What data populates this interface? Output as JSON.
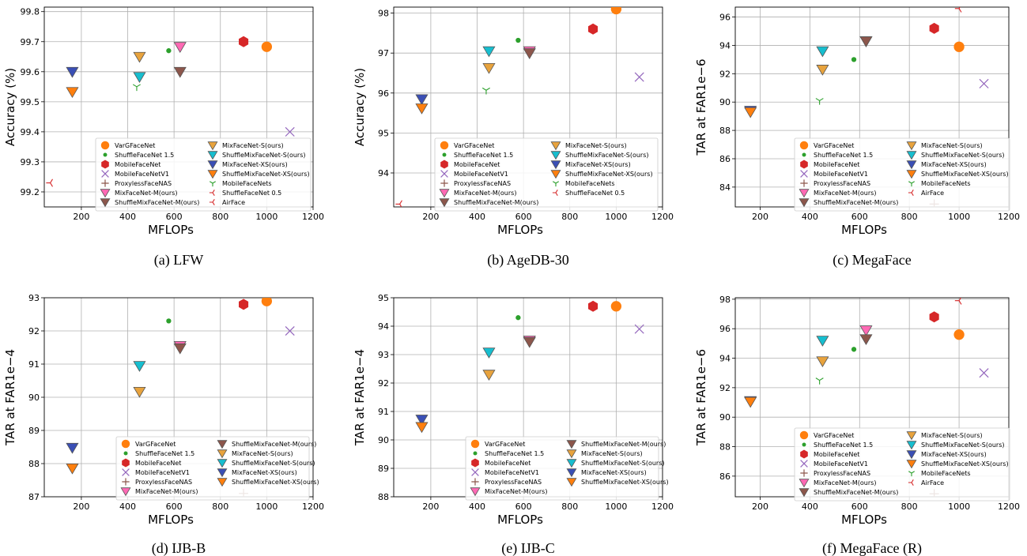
{
  "legend_names": {
    "VarGFaceNet": "VarGFaceNet",
    "ShuffleFaceNet15": "ShuffleFaceNet 1.5",
    "MobileFaceNet": "MobileFaceNet",
    "MobileFaceNetV1": "MobileFaceNetV1",
    "ProxylessFaceNAS": "ProxylessFaceNAS",
    "MixM": "MixFaceNet-M(ours)",
    "ShufMixM": "ShuffleMixFaceNet-M(ours)",
    "MixS": "MixFaceNet-S(ours)",
    "ShufMixS": "ShuffleMixFaceNet-S(ours)",
    "MixXS": "MixFaceNet-XS(ours)",
    "ShufMixXS": "ShuffleMixFaceNet-XS(ours)",
    "MobileFaceNets": "MobileFaceNets",
    "ShuffleFaceNet05": "ShuffleFaceNet 0.5",
    "AirFace": "AirFace"
  },
  "styles": {
    "VarGFaceNet": {
      "marker": "circle",
      "color": "#ff7f0e"
    },
    "ShuffleFaceNet15": {
      "marker": "dot",
      "color": "#2ca02c"
    },
    "MobileFaceNet": {
      "marker": "hexagon",
      "color": "#d62728"
    },
    "MobileFaceNetV1": {
      "marker": "x",
      "color": "#9467bd"
    },
    "ProxylessFaceNAS": {
      "marker": "plus",
      "color": "#8c564b"
    },
    "MixM": {
      "marker": "tri",
      "color": "#ff69b4"
    },
    "ShufMixM": {
      "marker": "tri",
      "color": "#8c564b"
    },
    "MixS": {
      "marker": "tri",
      "color": "#e8a33d"
    },
    "ShufMixS": {
      "marker": "tri",
      "color": "#17becf"
    },
    "MixXS": {
      "marker": "tri",
      "color": "#3a4fb5"
    },
    "ShufMixXS": {
      "marker": "tri",
      "color": "#ff7f0e"
    },
    "MobileFaceNets": {
      "marker": "tri_down",
      "color": "#2ca02c"
    },
    "ShuffleFaceNet05": {
      "marker": "tri_left",
      "color": "#d62728"
    },
    "AirFace": {
      "marker": "tri_left",
      "color": "#d62728"
    }
  },
  "chart_data": [
    {
      "type": "scatter",
      "caption": "(a) LFW",
      "xlabel": "MFLOPs",
      "ylabel": "Accuracy (%)",
      "xlim": [
        40,
        1200
      ],
      "ylim": [
        99.15,
        99.815
      ],
      "xticks": [
        200,
        400,
        600,
        800,
        1000,
        1200
      ],
      "yticks": [
        "99.2",
        "99.3",
        "99.4",
        "99.5",
        "99.6",
        "99.7",
        "99.8"
      ],
      "legend_cols": 2,
      "legend_order": [
        "VarGFaceNet",
        "ShuffleFaceNet15",
        "MobileFaceNet",
        "MobileFaceNetV1",
        "ProxylessFaceNAS",
        "MixM",
        "ShufMixM",
        "MixS",
        "ShufMixS",
        "MixXS",
        "ShufMixXS",
        "MobileFaceNets",
        "ShuffleFaceNet05",
        "AirFace"
      ],
      "points": [
        {
          "s": "VarGFaceNet",
          "x": 1000,
          "y": 99.683
        },
        {
          "s": "ShuffleFaceNet15",
          "x": 577,
          "y": 99.67
        },
        {
          "s": "MobileFaceNet",
          "x": 900,
          "y": 99.7
        },
        {
          "s": "MobileFaceNetV1",
          "x": 1100,
          "y": 99.4
        },
        {
          "s": "MixM",
          "x": 626,
          "y": 99.683
        },
        {
          "s": "ShufMixM",
          "x": 626,
          "y": 99.6
        },
        {
          "s": "MixS",
          "x": 451,
          "y": 99.65
        },
        {
          "s": "ShufMixS",
          "x": 451,
          "y": 99.583
        },
        {
          "s": "MixXS",
          "x": 161,
          "y": 99.6
        },
        {
          "s": "ShufMixXS",
          "x": 161,
          "y": 99.533
        },
        {
          "s": "MobileFaceNets",
          "x": 439,
          "y": 99.55
        },
        {
          "s": "ShuffleFaceNet05",
          "x": 66,
          "y": 99.23
        }
      ]
    },
    {
      "type": "scatter",
      "caption": "(b) AgeDB-30",
      "xlabel": "MFLOPs",
      "ylabel": "Accuracy (%)",
      "xlim": [
        40,
        1200
      ],
      "ylim": [
        93.15,
        98.15
      ],
      "xticks": [
        200,
        400,
        600,
        800,
        1000,
        1200
      ],
      "yticks": [
        "94",
        "95",
        "96",
        "97",
        "98"
      ],
      "legend_cols": 2,
      "legend_order": [
        "VarGFaceNet",
        "ShuffleFaceNet15",
        "MobileFaceNet",
        "MobileFaceNetV1",
        "ProxylessFaceNAS",
        "MixM",
        "ShufMixM",
        "MixS",
        "ShufMixS",
        "MixXS",
        "ShufMixXS",
        "MobileFaceNets",
        "ShuffleFaceNet05"
      ],
      "points": [
        {
          "s": "VarGFaceNet",
          "x": 1000,
          "y": 98.1
        },
        {
          "s": "ShuffleFaceNet15",
          "x": 577,
          "y": 97.32
        },
        {
          "s": "MobileFaceNet",
          "x": 900,
          "y": 97.6
        },
        {
          "s": "MobileFaceNetV1",
          "x": 1100,
          "y": 96.4
        },
        {
          "s": "MixM",
          "x": 626,
          "y": 97.05
        },
        {
          "s": "ShufMixM",
          "x": 626,
          "y": 97.0
        },
        {
          "s": "MixS",
          "x": 451,
          "y": 96.63
        },
        {
          "s": "ShufMixS",
          "x": 451,
          "y": 97.05
        },
        {
          "s": "MixXS",
          "x": 161,
          "y": 95.85
        },
        {
          "s": "ShufMixXS",
          "x": 161,
          "y": 95.62
        },
        {
          "s": "MobileFaceNets",
          "x": 439,
          "y": 96.07
        },
        {
          "s": "ShuffleFaceNet05",
          "x": 66,
          "y": 93.22
        }
      ]
    },
    {
      "type": "scatter",
      "caption": "(c) MegaFace",
      "xlabel": "MFLOPs",
      "ylabel": "TAR at FAR1e−6",
      "xlim": [
        100,
        1200
      ],
      "ylim": [
        82.6,
        96.7
      ],
      "xticks": [
        200,
        400,
        600,
        800,
        1000,
        1200
      ],
      "yticks": [
        "84",
        "86",
        "88",
        "90",
        "92",
        "94",
        "96"
      ],
      "legend_cols": 2,
      "legend_order": [
        "VarGFaceNet",
        "ShuffleFaceNet15",
        "MobileFaceNet",
        "MobileFaceNetV1",
        "ProxylessFaceNAS",
        "MixM",
        "ShufMixM",
        "MixS",
        "ShufMixS",
        "MixXS",
        "ShufMixXS",
        "MobileFaceNets",
        "AirFace"
      ],
      "points": [
        {
          "s": "VarGFaceNet",
          "x": 1000,
          "y": 93.9
        },
        {
          "s": "ShuffleFaceNet15",
          "x": 577,
          "y": 93.0
        },
        {
          "s": "MobileFaceNet",
          "x": 900,
          "y": 95.2
        },
        {
          "s": "MobileFaceNetV1",
          "x": 1100,
          "y": 91.3
        },
        {
          "s": "ProxylessFaceNAS",
          "x": 900,
          "y": 82.8
        },
        {
          "s": "MixM",
          "x": 626,
          "y": 94.3
        },
        {
          "s": "ShufMixM",
          "x": 626,
          "y": 94.3
        },
        {
          "s": "MixS",
          "x": 451,
          "y": 92.3
        },
        {
          "s": "ShufMixS",
          "x": 451,
          "y": 93.6
        },
        {
          "s": "MixXS",
          "x": 161,
          "y": 89.4
        },
        {
          "s": "ShufMixXS",
          "x": 161,
          "y": 89.3
        },
        {
          "s": "MobileFaceNets",
          "x": 439,
          "y": 90.1
        },
        {
          "s": "AirFace",
          "x": 1000,
          "y": 96.6
        }
      ]
    },
    {
      "type": "scatter",
      "caption": "(d) IJB-B",
      "xlabel": "MFLOPs",
      "ylabel": "TAR at FAR1e−4",
      "xlim": [
        40,
        1200
      ],
      "ylim": [
        87.0,
        93.0
      ],
      "xticks": [
        200,
        400,
        600,
        800,
        1000,
        1200
      ],
      "yticks": [
        "87",
        "88",
        "89",
        "90",
        "91",
        "92",
        "93"
      ],
      "legend_cols": 2,
      "legend_order": [
        "VarGFaceNet",
        "ShuffleFaceNet15",
        "MobileFaceNet",
        "MobileFaceNetV1",
        "ProxylessFaceNAS",
        "MixM",
        "ShufMixM",
        "MixS",
        "ShufMixS",
        "MixXS",
        "ShufMixXS"
      ],
      "points": [
        {
          "s": "VarGFaceNet",
          "x": 1000,
          "y": 92.9
        },
        {
          "s": "ShuffleFaceNet15",
          "x": 577,
          "y": 92.3
        },
        {
          "s": "MobileFaceNet",
          "x": 900,
          "y": 92.8
        },
        {
          "s": "MobileFaceNetV1",
          "x": 1100,
          "y": 92.0
        },
        {
          "s": "ProxylessFaceNAS",
          "x": 900,
          "y": 87.1
        },
        {
          "s": "MixM",
          "x": 626,
          "y": 91.55
        },
        {
          "s": "ShufMixM",
          "x": 626,
          "y": 91.48
        },
        {
          "s": "MixS",
          "x": 451,
          "y": 90.17
        },
        {
          "s": "ShufMixS",
          "x": 451,
          "y": 90.95
        },
        {
          "s": "MixXS",
          "x": 161,
          "y": 88.48
        },
        {
          "s": "ShufMixXS",
          "x": 161,
          "y": 87.86
        }
      ]
    },
    {
      "type": "scatter",
      "caption": "(e) IJB-C",
      "xlabel": "MFLOPs",
      "ylabel": "TAR at FAR1e−4",
      "xlim": [
        40,
        1200
      ],
      "ylim": [
        88.0,
        95.0
      ],
      "xticks": [
        200,
        400,
        600,
        800,
        1000,
        1200
      ],
      "yticks": [
        "88",
        "89",
        "90",
        "91",
        "92",
        "93",
        "94",
        "95"
      ],
      "legend_cols": 2,
      "legend_order": [
        "VarGFaceNet",
        "ShuffleFaceNet15",
        "MobileFaceNet",
        "MobileFaceNetV1",
        "ProxylessFaceNAS",
        "MixM",
        "ShufMixM",
        "MixS",
        "ShufMixS",
        "MixXS",
        "ShufMixXS"
      ],
      "points": [
        {
          "s": "VarGFaceNet",
          "x": 1000,
          "y": 94.7
        },
        {
          "s": "ShuffleFaceNet15",
          "x": 577,
          "y": 94.3
        },
        {
          "s": "MobileFaceNet",
          "x": 900,
          "y": 94.7
        },
        {
          "s": "MobileFaceNetV1",
          "x": 1100,
          "y": 93.9
        },
        {
          "s": "MixM",
          "x": 626,
          "y": 93.5
        },
        {
          "s": "ShufMixM",
          "x": 626,
          "y": 93.45
        },
        {
          "s": "MixS",
          "x": 451,
          "y": 92.3
        },
        {
          "s": "ShufMixS",
          "x": 451,
          "y": 93.08
        },
        {
          "s": "MixXS",
          "x": 161,
          "y": 90.72
        },
        {
          "s": "ShufMixXS",
          "x": 161,
          "y": 90.46
        }
      ]
    },
    {
      "type": "scatter",
      "caption": "(f) MegaFace (R)",
      "xlabel": "MFLOPs",
      "ylabel": "TAR at FAR1e−6",
      "xlim": [
        100,
        1200
      ],
      "ylim": [
        84.6,
        98.1
      ],
      "xticks": [
        200,
        400,
        600,
        800,
        1000,
        1200
      ],
      "yticks": [
        "86",
        "88",
        "90",
        "92",
        "94",
        "96",
        "98"
      ],
      "legend_cols": 2,
      "legend_order": [
        "VarGFaceNet",
        "ShuffleFaceNet15",
        "MobileFaceNet",
        "MobileFaceNetV1",
        "ProxylessFaceNAS",
        "MixM",
        "ShufMixM",
        "MixS",
        "ShufMixS",
        "MixXS",
        "ShufMixXS",
        "MobileFaceNets",
        "AirFace"
      ],
      "points": [
        {
          "s": "VarGFaceNet",
          "x": 1000,
          "y": 95.6
        },
        {
          "s": "ShuffleFaceNet15",
          "x": 577,
          "y": 94.6
        },
        {
          "s": "MobileFaceNet",
          "x": 900,
          "y": 96.8
        },
        {
          "s": "MobileFaceNetV1",
          "x": 1100,
          "y": 93.0
        },
        {
          "s": "ProxylessFaceNAS",
          "x": 900,
          "y": 84.8
        },
        {
          "s": "MixM",
          "x": 626,
          "y": 95.9
        },
        {
          "s": "ShufMixM",
          "x": 626,
          "y": 95.3
        },
        {
          "s": "MixS",
          "x": 451,
          "y": 93.8
        },
        {
          "s": "ShufMixS",
          "x": 451,
          "y": 95.2
        },
        {
          "s": "MixXS",
          "x": 161,
          "y": 91.1
        },
        {
          "s": "ShufMixXS",
          "x": 161,
          "y": 91.05
        },
        {
          "s": "MobileFaceNets",
          "x": 439,
          "y": 92.5
        },
        {
          "s": "AirFace",
          "x": 1000,
          "y": 97.9
        }
      ]
    }
  ]
}
